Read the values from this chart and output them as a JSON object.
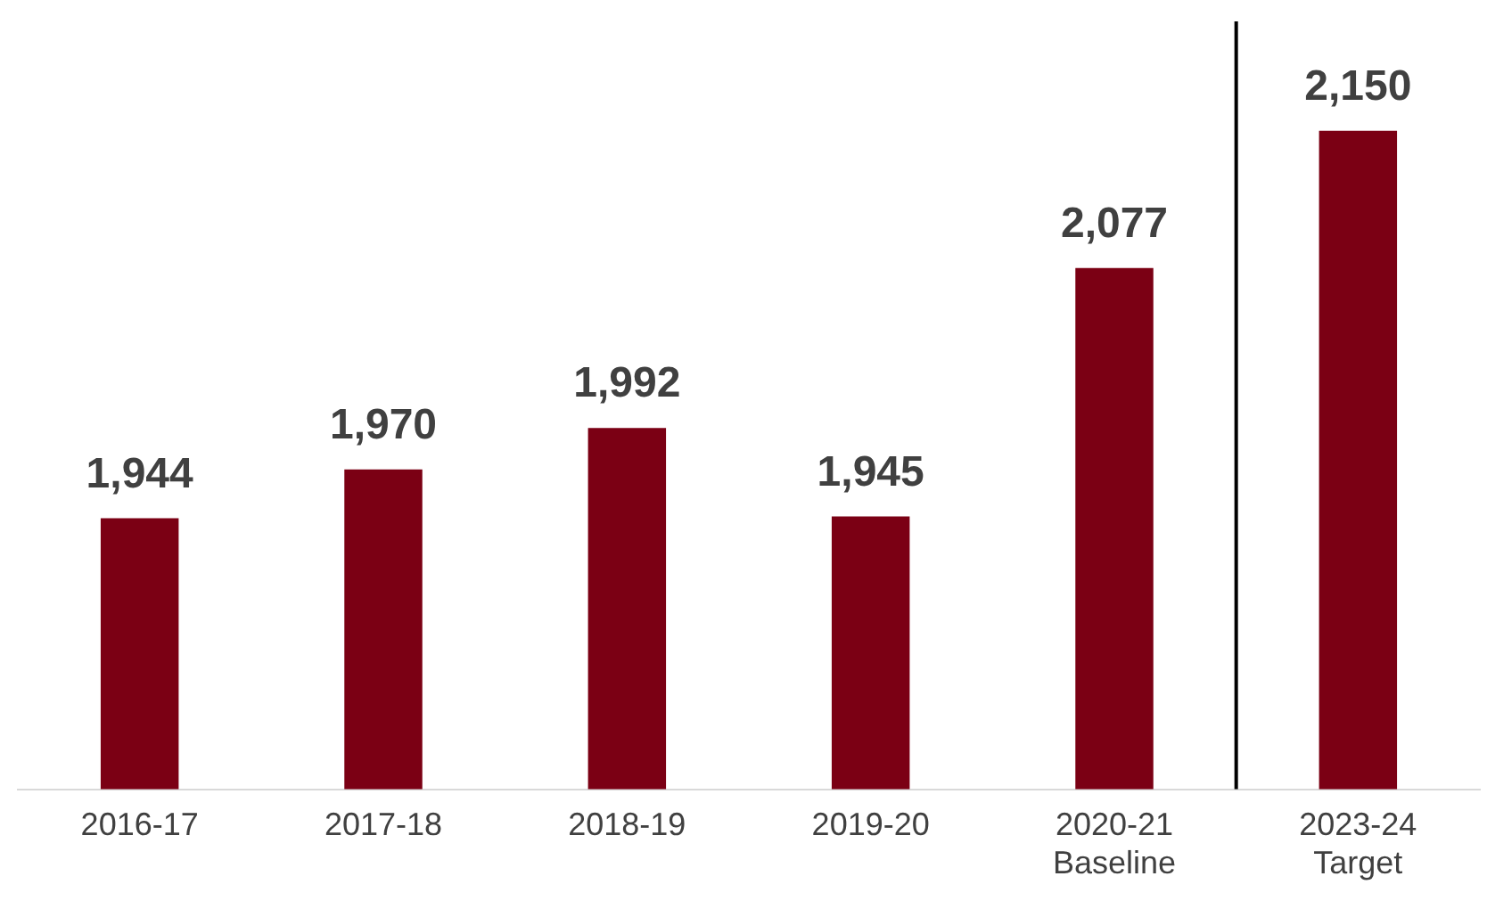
{
  "chart_data": {
    "type": "bar",
    "categories": [
      "2016-17",
      "2017-18",
      "2018-19",
      "2019-20",
      "2020-21\nBaseline",
      "2023-24\nTarget"
    ],
    "values": [
      1944,
      1970,
      1992,
      1945,
      2077,
      2150
    ],
    "color": "#7b0014",
    "ylim": [
      1800,
      2210
    ],
    "value_labels": [
      "1,944",
      "1,970",
      "1,992",
      "1,945",
      "2,077",
      "2,150"
    ],
    "grid": false,
    "legend": false,
    "tick_labels": "x"
  }
}
